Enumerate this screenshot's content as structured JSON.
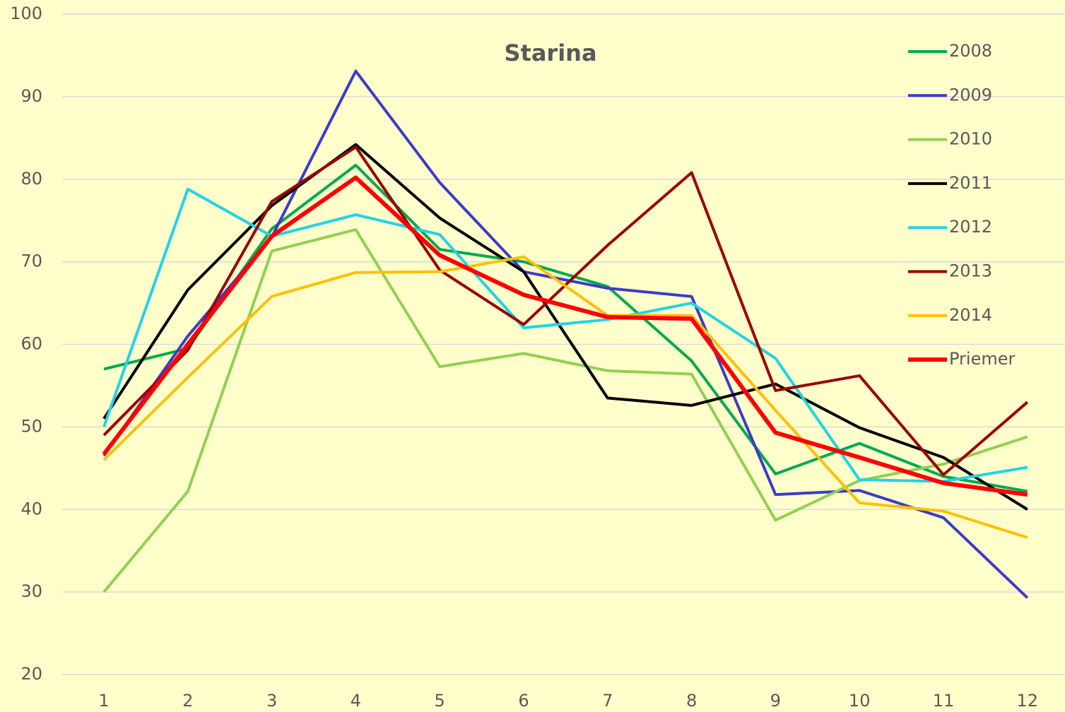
{
  "chart_data": {
    "type": "line",
    "title": "Starina",
    "categories": [
      "1",
      "2",
      "3",
      "4",
      "5",
      "6",
      "7",
      "8",
      "9",
      "10",
      "11",
      "12"
    ],
    "series": [
      {
        "name": "2008",
        "color": "#00a850",
        "values": [
          57,
          59.5,
          74,
          81.7,
          71.5,
          70,
          67,
          58,
          44.3,
          48,
          44,
          42.2
        ]
      },
      {
        "name": "2009",
        "color": "#3c3cc8",
        "values": [
          46.5,
          61,
          73,
          93.1,
          79.6,
          68.8,
          66.8,
          65.8,
          41.8,
          42.3,
          39,
          29.3
        ]
      },
      {
        "name": "2010",
        "color": "#92d050",
        "values": [
          30,
          42.2,
          71.3,
          73.9,
          57.3,
          58.9,
          56.8,
          56.4,
          38.7,
          43.5,
          45.5,
          48.8
        ]
      },
      {
        "name": "2011",
        "color": "#000000",
        "values": [
          51,
          66.6,
          76.8,
          84.2,
          75.3,
          68.8,
          53.5,
          52.6,
          55.2,
          49.9,
          46.3,
          40
        ]
      },
      {
        "name": "2012",
        "color": "#22d3e6",
        "values": [
          50,
          78.8,
          73.1,
          75.7,
          73.3,
          62,
          63,
          65,
          58.3,
          43.6,
          43.4,
          45.1
        ]
      },
      {
        "name": "2013",
        "color": "#990000",
        "values": [
          49,
          59.3,
          77.3,
          83.9,
          69,
          62.4,
          72,
          80.8,
          54.4,
          56.2,
          44.2,
          53
        ]
      },
      {
        "name": "2014",
        "color": "#ffc000",
        "values": [
          46,
          56,
          65.8,
          68.7,
          68.8,
          70.6,
          63.5,
          63.5,
          52,
          40.8,
          39.8,
          36.6
        ]
      },
      {
        "name": "Priemer",
        "color": "#ff0000",
        "values": [
          46.7,
          60,
          73.1,
          80.2,
          70.8,
          66,
          63.3,
          63.1,
          49.3,
          46.3,
          43.2,
          41.8
        ]
      }
    ],
    "ylim": [
      20,
      100
    ],
    "yticks": [
      20,
      30,
      40,
      50,
      60,
      70,
      80,
      90,
      100
    ],
    "grid": true,
    "legend": "right"
  }
}
